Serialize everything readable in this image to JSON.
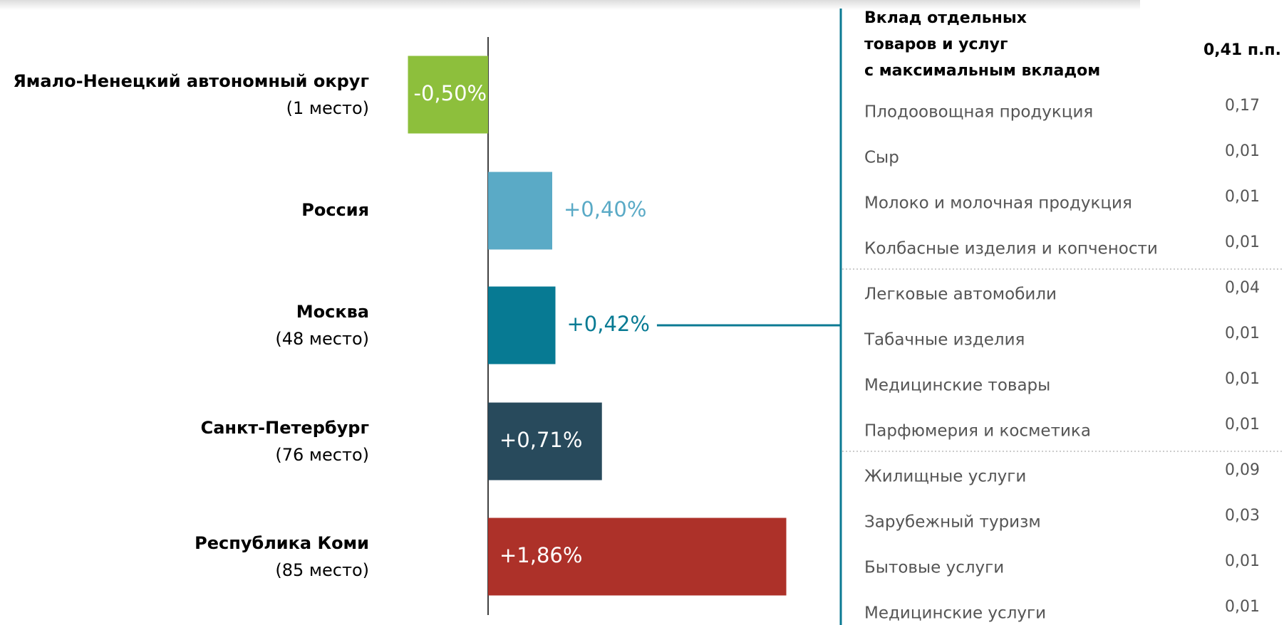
{
  "chart_data": {
    "type": "barh",
    "categories": [
      "Ямало-Ненецкий автономный округ",
      "Россия",
      "Москва",
      "Санкт-Петербург",
      "Республика Коми"
    ],
    "ranks": [
      "(1 место)",
      null,
      "(48 место)",
      "(76 место)",
      "(85 место)"
    ],
    "values": [
      -0.5,
      0.4,
      0.42,
      0.71,
      1.86
    ],
    "value_labels": [
      "-0,50%",
      "+0,40%",
      "+0,42%",
      "+0,71%",
      "+1,86%"
    ],
    "colors": [
      "#8dbf3c",
      "#5aaac6",
      "#077a93",
      "#284a5c",
      "#ad3129"
    ]
  },
  "table": {
    "header": [
      "Вклад отдельных",
      "товаров и услуг",
      "с максимальным вкладом"
    ],
    "total": "0,41 п.п.",
    "groups": [
      [
        {
          "name": "Плодоовощная продукция",
          "value": "0,17"
        },
        {
          "name": "Сыр",
          "value": "0,01"
        },
        {
          "name": "Молоко и молочная продукция",
          "value": "0,01"
        },
        {
          "name": "Колбасные изделия и копчености",
          "value": "0,01"
        }
      ],
      [
        {
          "name": "Легковые автомобили",
          "value": "0,04"
        },
        {
          "name": "Табачные изделия",
          "value": "0,01"
        },
        {
          "name": "Медицинские товары",
          "value": "0,01"
        },
        {
          "name": "Парфюмерия и косметика",
          "value": "0,01"
        }
      ],
      [
        {
          "name": "Жилищные услуги",
          "value": "0,09"
        },
        {
          "name": "Зарубежный туризм",
          "value": "0,03"
        },
        {
          "name": "Бытовые услуги",
          "value": "0,01"
        },
        {
          "name": "Медицинские услуги",
          "value": "0,01"
        }
      ]
    ]
  }
}
